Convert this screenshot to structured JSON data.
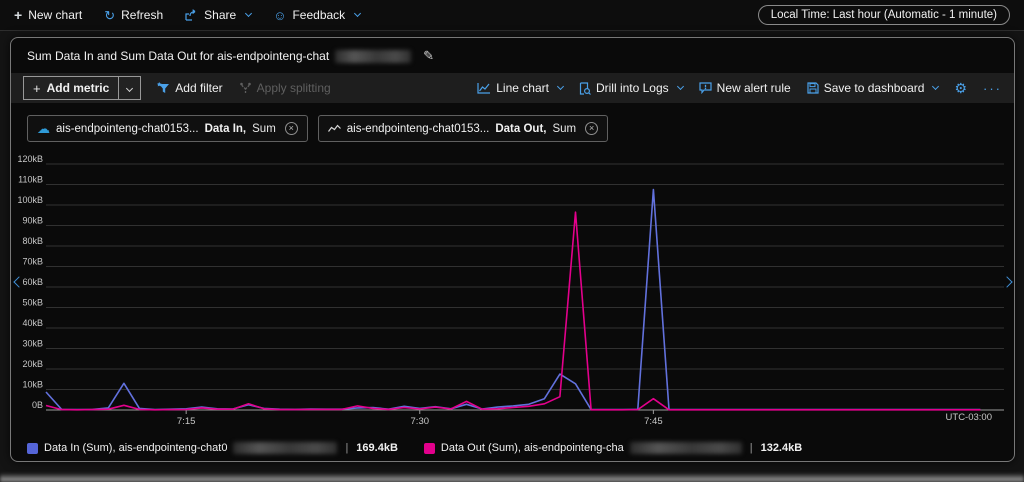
{
  "topbar": {
    "new_chart": "New chart",
    "refresh": "Refresh",
    "share": "Share",
    "feedback": "Feedback",
    "local_time": "Local Time: Last hour (Automatic - 1 minute)"
  },
  "chart_header": {
    "title": "Sum Data In and Sum Data Out for ais-endpointeng-chat"
  },
  "toolbar": {
    "add_metric": "Add metric",
    "add_filter": "Add filter",
    "apply_splitting": "Apply splitting",
    "line_chart": "Line chart",
    "drill_into_logs": "Drill into Logs",
    "new_alert_rule": "New alert rule",
    "save_to_dashboard": "Save to dashboard",
    "ellipsis": "···"
  },
  "metric_pills": [
    {
      "resource": "ais-endpointeng-chat0153...",
      "metric": "Data In,",
      "aggregation": "Sum"
    },
    {
      "resource": "ais-endpointeng-chat0153...",
      "metric": "Data Out,",
      "aggregation": "Sum"
    }
  ],
  "legend": [
    {
      "label": "Data In (Sum), ais-endpointeng-chat0",
      "value": "169.4kB",
      "color": "#5565d8"
    },
    {
      "label": "Data Out (Sum), ais-endpointeng-cha",
      "value": "132.4kB",
      "color": "#e3008c"
    }
  ],
  "colors": {
    "accent": "#4aa0e8",
    "grid": "#313131",
    "axis": "#9c9c9c",
    "tick_text": "#c8c8c8"
  },
  "chart_data": {
    "type": "line",
    "title": "Sum Data In and Sum Data Out for ais-endpointeng-chat",
    "ylabel": "",
    "unit": "kB",
    "ylim": [
      0,
      120
    ],
    "y_tick_step": 10,
    "y_tick_labels": [
      "0B",
      "10kB",
      "20kB",
      "30kB",
      "40kB",
      "50kB",
      "60kB",
      "70kB",
      "80kB",
      "90kB",
      "100kB",
      "110kB",
      "120kB"
    ],
    "x_span_minutes": 61,
    "x_ticks": [
      {
        "minute": 9,
        "label": "7:15"
      },
      {
        "minute": 24,
        "label": "7:30"
      },
      {
        "minute": 39,
        "label": "7:45"
      }
    ],
    "x_axis_note": "UTC-03:00",
    "grid": true,
    "legend_position": "bottom",
    "series": [
      {
        "name": "Data In (Sum)",
        "color": "#6271dd",
        "total": "169.4kB",
        "points": [
          [
            0,
            8.8
          ],
          [
            1,
            0.3
          ],
          [
            2,
            0.2
          ],
          [
            3,
            0.3
          ],
          [
            4,
            1
          ],
          [
            5,
            13
          ],
          [
            6,
            0.8
          ],
          [
            7,
            0.2
          ],
          [
            8,
            0.4
          ],
          [
            9,
            0.6
          ],
          [
            10,
            1.4
          ],
          [
            11,
            0.6
          ],
          [
            12,
            0.5
          ],
          [
            13,
            2.6
          ],
          [
            14,
            0.8
          ],
          [
            15,
            0.4
          ],
          [
            16,
            0.3
          ],
          [
            17,
            0.5
          ],
          [
            18,
            0.4
          ],
          [
            19,
            0.4
          ],
          [
            20,
            1
          ],
          [
            21,
            1.2
          ],
          [
            22,
            0.4
          ],
          [
            23,
            1.8
          ],
          [
            24,
            0.8
          ],
          [
            25,
            1.6
          ],
          [
            26,
            0.6
          ],
          [
            27,
            2.8
          ],
          [
            28,
            0.5
          ],
          [
            29,
            1.4
          ],
          [
            30,
            2
          ],
          [
            31,
            2.8
          ],
          [
            32,
            5.5
          ],
          [
            33,
            17.5
          ],
          [
            34,
            12.8
          ],
          [
            35,
            0.2
          ],
          [
            36,
            0.2
          ],
          [
            37,
            0.2
          ],
          [
            38,
            0.3
          ],
          [
            39,
            107.5
          ],
          [
            40,
            0.2
          ],
          [
            41,
            0.2
          ],
          [
            42,
            0.2
          ],
          [
            43,
            0.2
          ],
          [
            44,
            0.2
          ],
          [
            45,
            0.2
          ],
          [
            46,
            0.2
          ],
          [
            47,
            0.2
          ],
          [
            48,
            0.2
          ],
          [
            49,
            0.2
          ],
          [
            50,
            0.2
          ],
          [
            51,
            0.2
          ],
          [
            52,
            0.2
          ],
          [
            53,
            0.2
          ],
          [
            54,
            0.2
          ],
          [
            55,
            0.2
          ],
          [
            56,
            0.2
          ],
          [
            57,
            0.2
          ],
          [
            58,
            0.2
          ],
          [
            59,
            0.2
          ],
          [
            60,
            0.2
          ]
        ]
      },
      {
        "name": "Data Out (Sum)",
        "color": "#e3008c",
        "total": "132.4kB",
        "points": [
          [
            0,
            2.2
          ],
          [
            1,
            0.2
          ],
          [
            2,
            0.1
          ],
          [
            3,
            0.2
          ],
          [
            4,
            0.4
          ],
          [
            5,
            2.3
          ],
          [
            6,
            0.3
          ],
          [
            7,
            0.1
          ],
          [
            8,
            0.2
          ],
          [
            9,
            0.3
          ],
          [
            10,
            1
          ],
          [
            11,
            0.4
          ],
          [
            12,
            0.4
          ],
          [
            13,
            3
          ],
          [
            14,
            0.6
          ],
          [
            15,
            0.2
          ],
          [
            16,
            0.2
          ],
          [
            17,
            0.3
          ],
          [
            18,
            0.3
          ],
          [
            19,
            0.3
          ],
          [
            20,
            2
          ],
          [
            21,
            0.8
          ],
          [
            22,
            0.3
          ],
          [
            23,
            1.2
          ],
          [
            24,
            0.5
          ],
          [
            25,
            1.4
          ],
          [
            26,
            0.5
          ],
          [
            27,
            4.2
          ],
          [
            28,
            0.4
          ],
          [
            29,
            0.6
          ],
          [
            30,
            1.2
          ],
          [
            31,
            1.8
          ],
          [
            32,
            3
          ],
          [
            33,
            6.5
          ],
          [
            34,
            96.5
          ],
          [
            35,
            0.1
          ],
          [
            36,
            0.1
          ],
          [
            37,
            0.1
          ],
          [
            38,
            0.2
          ],
          [
            39,
            5.5
          ],
          [
            40,
            0.1
          ],
          [
            41,
            0.1
          ],
          [
            42,
            0.1
          ],
          [
            43,
            0.1
          ],
          [
            44,
            0.1
          ],
          [
            45,
            0.1
          ],
          [
            46,
            0.1
          ],
          [
            47,
            0.1
          ],
          [
            48,
            0.1
          ],
          [
            49,
            0.1
          ],
          [
            50,
            0.1
          ],
          [
            51,
            0.1
          ],
          [
            52,
            0.1
          ],
          [
            53,
            0.1
          ],
          [
            54,
            0.1
          ],
          [
            55,
            0.1
          ],
          [
            56,
            0.1
          ],
          [
            57,
            0.1
          ],
          [
            58,
            0.1
          ],
          [
            59,
            0.1
          ],
          [
            60,
            0.1
          ]
        ]
      }
    ]
  }
}
